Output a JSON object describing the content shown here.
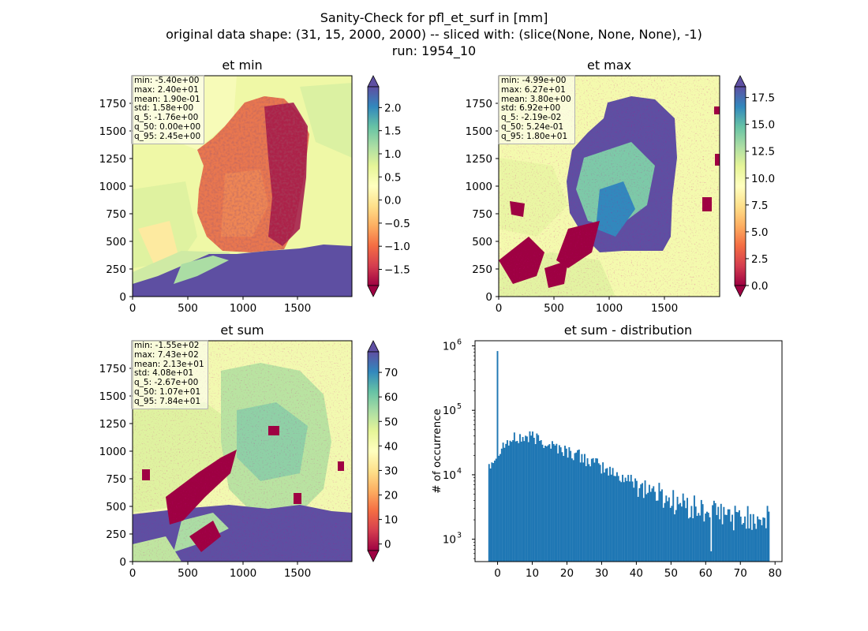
{
  "suptitle": {
    "line1": "Sanity-Check for pfl_et_surf in [mm]",
    "line2": "original data shape: (31, 15, 2000, 2000) -- sliced with: (slice(None, None, None), -1)",
    "line3": "run: 1954_10"
  },
  "colors": {
    "spectral_r": [
      "#9e0142",
      "#d53e4f",
      "#f46d43",
      "#fdae61",
      "#fee08b",
      "#ffffbf",
      "#e6f598",
      "#abdda4",
      "#66c2a5",
      "#3288bd",
      "#5e4fa2"
    ],
    "hist_bar": "#1f77b4"
  },
  "chart_data": [
    {
      "type": "heatmap",
      "title": "et min",
      "colormap": "Spectral",
      "xlim": [
        0,
        2000
      ],
      "ylim": [
        0,
        2000
      ],
      "xticks": [
        "0",
        "500",
        "1000",
        "1500"
      ],
      "yticks": [
        "0",
        "250",
        "500",
        "750",
        "1000",
        "1250",
        "1500",
        "1750"
      ],
      "colorbar": {
        "range": [
          -1.85,
          2.45
        ],
        "ticks": [
          "−1.5",
          "−1.0",
          "−0.5",
          "0.0",
          "0.5",
          "1.0",
          "1.5",
          "2.0"
        ],
        "extend": "both"
      },
      "stats": [
        "min: -5.40e+00",
        "max: 2.40e+01",
        "mean: 1.90e-01",
        "std: 1.58e+00",
        "q_5: -1.76e+00",
        "q_50: 0.00e+00",
        "q_95: 2.45e+00"
      ]
    },
    {
      "type": "heatmap",
      "title": "et max",
      "colormap": "Spectral",
      "xlim": [
        0,
        2000
      ],
      "ylim": [
        0,
        2000
      ],
      "xticks": [
        "0",
        "500",
        "1000",
        "1500"
      ],
      "yticks": [
        "0",
        "250",
        "500",
        "750",
        "1000",
        "1250",
        "1500",
        "1750"
      ],
      "colorbar": {
        "range": [
          0,
          18.5
        ],
        "ticks": [
          "0.0",
          "2.5",
          "5.0",
          "7.5",
          "10.0",
          "12.5",
          "15.0",
          "17.5"
        ],
        "extend": "both"
      },
      "stats": [
        "min: -4.99e+00",
        "max: 6.27e+01",
        "mean: 3.80e+00",
        "std: 6.92e+00",
        "q_5: -2.19e-02",
        "q_50: 5.24e-01",
        "q_95: 1.80e+01"
      ]
    },
    {
      "type": "heatmap",
      "title": "et sum",
      "colormap": "Spectral",
      "xlim": [
        0,
        2000
      ],
      "ylim": [
        0,
        2000
      ],
      "xticks": [
        "0",
        "500",
        "1000",
        "1500"
      ],
      "yticks": [
        "0",
        "250",
        "500",
        "750",
        "1000",
        "1250",
        "1500",
        "1750"
      ],
      "colorbar": {
        "range": [
          -2.67,
          78.4
        ],
        "ticks": [
          "0",
          "10",
          "20",
          "30",
          "40",
          "50",
          "60",
          "70"
        ],
        "extend": "both"
      },
      "stats": [
        "min: -1.55e+02",
        "max: 7.43e+02",
        "mean: 2.13e+01",
        "std: 4.08e+01",
        "q_5: -2.67e+00",
        "q_50: 1.07e+01",
        "q_95: 7.84e+01"
      ]
    },
    {
      "type": "bar",
      "title": "et sum - distribution",
      "ylabel": "# of occurrence",
      "yscale": "log",
      "xlim": [
        -6.5,
        82
      ],
      "ylim": [
        450,
        1200000
      ],
      "xticks": [
        0,
        10,
        20,
        30,
        40,
        50,
        60,
        70,
        80
      ],
      "yticks": [
        {
          "value": 1000,
          "label": "10",
          "exp": "3"
        },
        {
          "value": 10000,
          "label": "10",
          "exp": "4"
        },
        {
          "value": 100000,
          "label": "10",
          "exp": "5"
        },
        {
          "value": 1000000,
          "label": "10",
          "exp": "6"
        }
      ],
      "bin_range": [
        -2.67,
        78.4
      ],
      "n_bins": 200,
      "peak": {
        "x": 0,
        "count": 830000
      },
      "anchors": [
        [
          -2.67,
          15000
        ],
        [
          -1,
          18000
        ],
        [
          0.5,
          26000
        ],
        [
          2,
          30000
        ],
        [
          5,
          36000
        ],
        [
          10,
          38000
        ],
        [
          15,
          30000
        ],
        [
          20,
          23000
        ],
        [
          25,
          18000
        ],
        [
          30,
          13000
        ],
        [
          35,
          9500
        ],
        [
          40,
          7500
        ],
        [
          45,
          5500
        ],
        [
          50,
          4000
        ],
        [
          55,
          3200
        ],
        [
          60,
          2600
        ],
        [
          65,
          2400
        ],
        [
          70,
          2100
        ],
        [
          75,
          2200
        ],
        [
          78.4,
          2000
        ]
      ],
      "dips": [
        {
          "x": 61.5,
          "count": 650
        }
      ]
    }
  ]
}
